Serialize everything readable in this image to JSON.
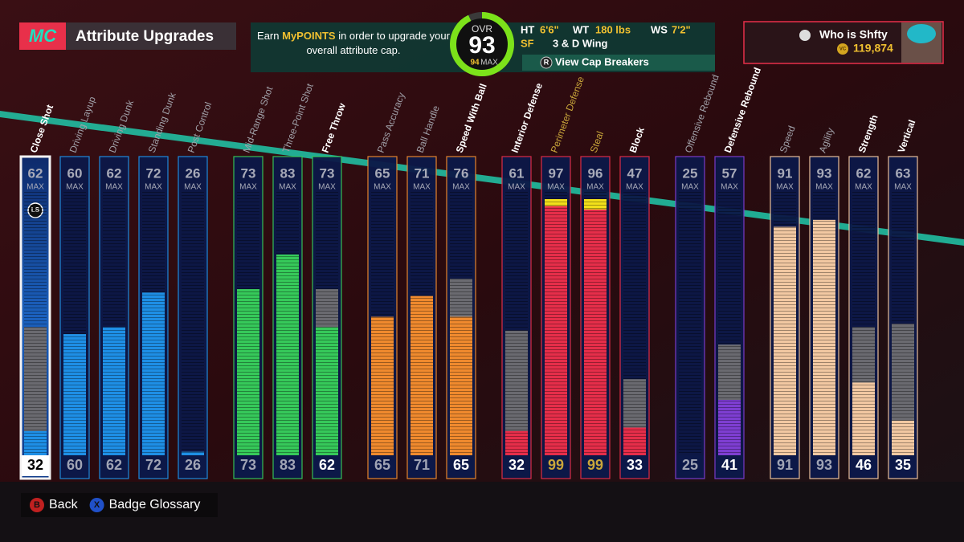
{
  "header": {
    "logo": "MC",
    "title": "Attribute Upgrades",
    "info_before": "Earn ",
    "info_highlight": "MyPOINTS",
    "info_after": " in order to upgrade your overall attribute cap.",
    "ovr_label": "OVR",
    "ovr": 93,
    "ovr_max": 94,
    "max_label": "MAX",
    "ht_label": "HT",
    "ht": "6'6\"",
    "wt_label": "WT",
    "wt": "180 lbs",
    "ws_label": "WS",
    "ws": "7'2\"",
    "position": "SF",
    "archetype": "3 & D Wing",
    "cap_button": "R",
    "cap_link": "View Cap Breakers"
  },
  "profile": {
    "name": "Who is Shfty",
    "currency": "VC",
    "vc": "119,874"
  },
  "attributes": {
    "ylim": [
      25,
      99
    ],
    "max_label": "MAX",
    "selected_badge": "LS",
    "groups": [
      {
        "color": "#1e8fe6",
        "items": [
          {
            "name": "Close Shot",
            "cap": 62,
            "value": 32,
            "selected": true
          },
          {
            "name": "Driving Layup",
            "cap": 60,
            "value": 60
          },
          {
            "name": "Driving Dunk",
            "cap": 62,
            "value": 62
          },
          {
            "name": "Standing Dunk",
            "cap": 72,
            "value": 72
          },
          {
            "name": "Post Control",
            "cap": 26,
            "value": 26
          }
        ]
      },
      {
        "color": "#36c95a",
        "items": [
          {
            "name": "Mid-Range Shot",
            "cap": 73,
            "value": 73
          },
          {
            "name": "Three-Point Shot",
            "cap": 83,
            "value": 83
          },
          {
            "name": "Free Throw",
            "cap": 73,
            "value": 62
          }
        ]
      },
      {
        "color": "#f08a2e",
        "items": [
          {
            "name": "Pass Accuracy",
            "cap": 65,
            "value": 65
          },
          {
            "name": "Ball Handle",
            "cap": 71,
            "value": 71
          },
          {
            "name": "Speed With Ball",
            "cap": 76,
            "value": 65
          }
        ]
      },
      {
        "color": "#e62e4a",
        "items": [
          {
            "name": "Interior Defense",
            "cap": 61,
            "value": 32
          },
          {
            "name": "Perimeter Defense",
            "cap": 97,
            "value": 99
          },
          {
            "name": "Steal",
            "cap": 96,
            "value": 99
          },
          {
            "name": "Block",
            "cap": 47,
            "value": 33
          }
        ]
      },
      {
        "color": "#7e3ed2",
        "items": [
          {
            "name": "Offensive Rebound",
            "cap": 25,
            "value": 25
          },
          {
            "name": "Defensive Rebound",
            "cap": 57,
            "value": 41
          }
        ]
      },
      {
        "color": "#f2c8a2",
        "items": [
          {
            "name": "Speed",
            "cap": 91,
            "value": 91
          },
          {
            "name": "Agility",
            "cap": 93,
            "value": 93
          },
          {
            "name": "Strength",
            "cap": 62,
            "value": 46
          },
          {
            "name": "Vertical",
            "cap": 63,
            "value": 35
          }
        ]
      }
    ]
  },
  "footer": {
    "buttons": [
      {
        "key": "B",
        "label": "Back"
      },
      {
        "key": "X",
        "label": "Badge Glossary"
      }
    ]
  }
}
